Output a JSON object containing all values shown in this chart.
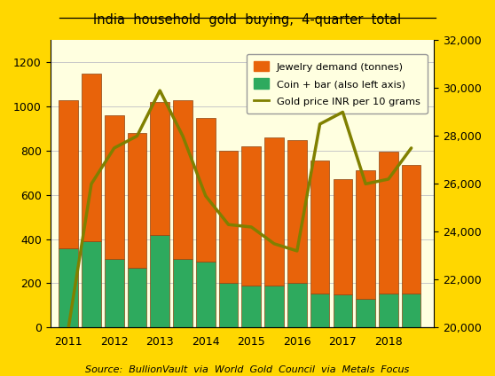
{
  "title": "India  household  gold  buying,  4-quarter  total",
  "source_text": "Source:  BullionVault  via  World  Gold  Council  via  Metals  Focus",
  "background_outer": "#FFD700",
  "background_inner": "#FFFFE0",
  "bar_positions": [
    2011.0,
    2011.5,
    2012.0,
    2012.5,
    2013.0,
    2013.5,
    2014.0,
    2014.5,
    2015.0,
    2015.5,
    2016.0,
    2016.5,
    2017.0,
    2017.5,
    2018.0,
    2018.5
  ],
  "jewelry": [
    670,
    760,
    650,
    610,
    600,
    720,
    650,
    600,
    630,
    670,
    650,
    600,
    520,
    580,
    640,
    580
  ],
  "coin_bar": [
    360,
    390,
    310,
    270,
    420,
    310,
    300,
    200,
    190,
    190,
    200,
    155,
    150,
    130,
    155,
    155
  ],
  "gold_price": [
    20000,
    26000,
    27500,
    28000,
    29900,
    28000,
    25500,
    24300,
    24200,
    23500,
    23200,
    28500,
    29000,
    26000,
    26200,
    27500
  ],
  "x_ticks": [
    2011,
    2012,
    2013,
    2014,
    2015,
    2016,
    2017,
    2018
  ],
  "ylim_left": [
    0,
    1300
  ],
  "ylim_right": [
    20000,
    32000
  ],
  "bar_width": 0.42,
  "jewelry_color": "#E8630A",
  "coin_bar_color": "#2EAA5E",
  "gold_price_color": "#808000",
  "bar_edge_color": "#8B4513",
  "grid_color": "#C8C8C8",
  "legend_labels": [
    "Jewelry demand (tonnes)",
    "Coin + bar (also left axis)",
    "Gold price INR per 10 grams"
  ],
  "right_yticks": [
    20000,
    22000,
    24000,
    26000,
    28000,
    30000,
    32000
  ],
  "right_yticklabels": [
    "20,000",
    "22,000",
    "24,000",
    "26,000",
    "28,000",
    "30,000",
    "32,000"
  ]
}
